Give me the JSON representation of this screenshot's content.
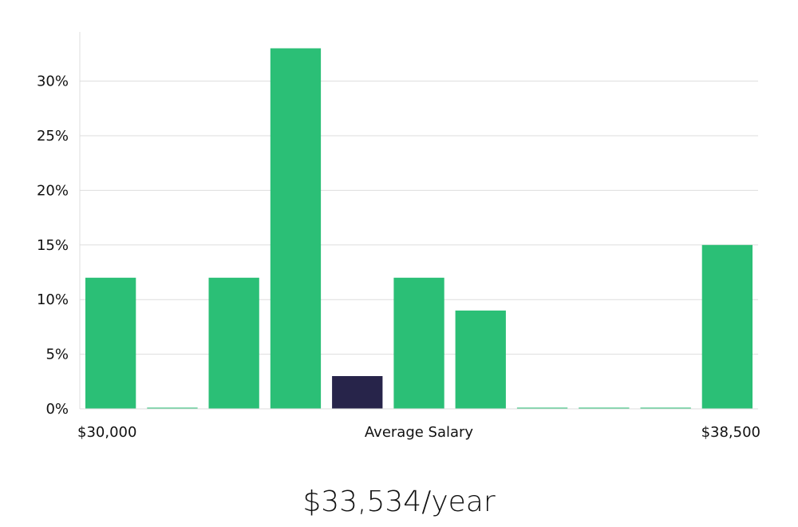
{
  "chart_data": {
    "type": "bar",
    "xlabel": "Average Salary",
    "x_range_labels": [
      "$30,000",
      "$38,500"
    ],
    "y_ticks": [
      "0%",
      "5%",
      "10%",
      "15%",
      "20%",
      "25%",
      "30%"
    ],
    "ylim": [
      0,
      34.5
    ],
    "grid": true,
    "bin_count": 11,
    "values": [
      12,
      0,
      12,
      33,
      3,
      12,
      9,
      0,
      0,
      0,
      15
    ],
    "highlight_index": 4,
    "colors": {
      "bar": "#2bbf76",
      "highlight": "#27244a",
      "grid": "#dddddd",
      "axis": "#dddddd"
    }
  },
  "summary": "$33,534/year"
}
